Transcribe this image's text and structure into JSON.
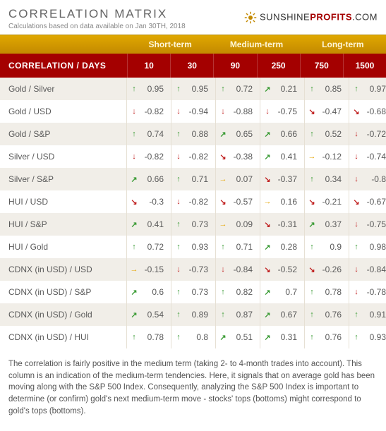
{
  "header": {
    "title": "CORRELATION MATRIX",
    "subtitle": "Calculations based on data available on Jan 30TH, 2018",
    "logo_sunshine": "SUNSHINE",
    "logo_profits": "PROFITS",
    "logo_com": ".COM"
  },
  "terms": {
    "groups": [
      {
        "label": "Short-term",
        "span": 2
      },
      {
        "label": "Medium-term",
        "span": 2
      },
      {
        "label": "Long-term",
        "span": 2
      }
    ]
  },
  "days": {
    "label": "CORRELATION / DAYS",
    "cols": [
      "10",
      "30",
      "90",
      "250",
      "750",
      "1500"
    ]
  },
  "rows": [
    {
      "label": "Gold / Silver",
      "cells": [
        {
          "a": "up",
          "v": "0.95"
        },
        {
          "a": "up",
          "v": "0.95"
        },
        {
          "a": "up",
          "v": "0.72"
        },
        {
          "a": "upr",
          "v": "0.21"
        },
        {
          "a": "up",
          "v": "0.85"
        },
        {
          "a": "up",
          "v": "0.97"
        }
      ]
    },
    {
      "label": "Gold / USD",
      "cells": [
        {
          "a": "dn",
          "v": "-0.82"
        },
        {
          "a": "dn",
          "v": "-0.94"
        },
        {
          "a": "dn",
          "v": "-0.88"
        },
        {
          "a": "dn",
          "v": "-0.75"
        },
        {
          "a": "dnr",
          "v": "-0.47"
        },
        {
          "a": "dnr",
          "v": "-0.68"
        }
      ]
    },
    {
      "label": "Gold / S&P",
      "cells": [
        {
          "a": "up",
          "v": "0.74"
        },
        {
          "a": "up",
          "v": "0.88"
        },
        {
          "a": "upr",
          "v": "0.65"
        },
        {
          "a": "upr",
          "v": "0.66"
        },
        {
          "a": "up",
          "v": "0.52"
        },
        {
          "a": "dn",
          "v": "-0.72"
        }
      ]
    },
    {
      "label": "Silver / USD",
      "cells": [
        {
          "a": "dn",
          "v": "-0.82"
        },
        {
          "a": "dn",
          "v": "-0.82"
        },
        {
          "a": "dnr",
          "v": "-0.38"
        },
        {
          "a": "upr",
          "v": "0.41"
        },
        {
          "a": "rt",
          "v": "-0.12"
        },
        {
          "a": "dn",
          "v": "-0.74"
        }
      ]
    },
    {
      "label": "Silver / S&P",
      "cells": [
        {
          "a": "upr",
          "v": "0.66"
        },
        {
          "a": "up",
          "v": "0.71"
        },
        {
          "a": "rt",
          "v": "0.07"
        },
        {
          "a": "dnr",
          "v": "-0.37"
        },
        {
          "a": "up",
          "v": "0.34"
        },
        {
          "a": "dn",
          "v": "-0.8"
        }
      ]
    },
    {
      "label": "HUI / USD",
      "cells": [
        {
          "a": "dnr",
          "v": "-0.3"
        },
        {
          "a": "dn",
          "v": "-0.82"
        },
        {
          "a": "dnr",
          "v": "-0.57"
        },
        {
          "a": "rt",
          "v": "0.16"
        },
        {
          "a": "dnr",
          "v": "-0.21"
        },
        {
          "a": "dnr",
          "v": "-0.67"
        }
      ]
    },
    {
      "label": "HUI / S&P",
      "cells": [
        {
          "a": "upr",
          "v": "0.41"
        },
        {
          "a": "up",
          "v": "0.73"
        },
        {
          "a": "rt",
          "v": "0.09"
        },
        {
          "a": "dnr",
          "v": "-0.31"
        },
        {
          "a": "upr",
          "v": "0.37"
        },
        {
          "a": "dn",
          "v": "-0.75"
        }
      ]
    },
    {
      "label": "HUI / Gold",
      "cells": [
        {
          "a": "up",
          "v": "0.72"
        },
        {
          "a": "up",
          "v": "0.93"
        },
        {
          "a": "up",
          "v": "0.71"
        },
        {
          "a": "upr",
          "v": "0.28"
        },
        {
          "a": "up",
          "v": "0.9"
        },
        {
          "a": "up",
          "v": "0.98"
        }
      ]
    },
    {
      "label": "CDNX (in USD) / USD",
      "cells": [
        {
          "a": "rt",
          "v": "-0.15"
        },
        {
          "a": "dn",
          "v": "-0.73"
        },
        {
          "a": "dn",
          "v": "-0.84"
        },
        {
          "a": "dnr",
          "v": "-0.52"
        },
        {
          "a": "dnr",
          "v": "-0.26"
        },
        {
          "a": "dn",
          "v": "-0.84"
        }
      ]
    },
    {
      "label": "CDNX (in USD) / S&P",
      "cells": [
        {
          "a": "upr",
          "v": "0.6"
        },
        {
          "a": "up",
          "v": "0.73"
        },
        {
          "a": "up",
          "v": "0.82"
        },
        {
          "a": "upr",
          "v": "0.7"
        },
        {
          "a": "up",
          "v": "0.78"
        },
        {
          "a": "dn",
          "v": "-0.78"
        }
      ]
    },
    {
      "label": "CDNX (in USD) / Gold",
      "cells": [
        {
          "a": "upr",
          "v": "0.54"
        },
        {
          "a": "up",
          "v": "0.89"
        },
        {
          "a": "up",
          "v": "0.87"
        },
        {
          "a": "upr",
          "v": "0.67"
        },
        {
          "a": "up",
          "v": "0.76"
        },
        {
          "a": "up",
          "v": "0.91"
        }
      ]
    },
    {
      "label": "CDNX (in USD) / HUI",
      "cells": [
        {
          "a": "up",
          "v": "0.78"
        },
        {
          "a": "up",
          "v": "0.8"
        },
        {
          "a": "upr",
          "v": "0.51"
        },
        {
          "a": "upr",
          "v": "0.31"
        },
        {
          "a": "up",
          "v": "0.76"
        },
        {
          "a": "up",
          "v": "0.93"
        }
      ]
    }
  ],
  "arrows": {
    "up": {
      "glyph": "↑",
      "color": "#3a9b34"
    },
    "upr": {
      "glyph": "↗",
      "color": "#3a9b34"
    },
    "rt": {
      "glyph": "→",
      "color": "#e6a400"
    },
    "dnr": {
      "glyph": "↘",
      "color": "#c02020"
    },
    "dn": {
      "glyph": "↓",
      "color": "#c02020"
    }
  },
  "colors": {
    "header_bar_start": "#e0a800",
    "header_bar_end": "#c38900",
    "days_row_bg": "#a40000",
    "row_alt_bg": "#f1eee8",
    "row_bg": "#ffffff",
    "border": "#e6e0d4",
    "text": "#5a5a5a"
  },
  "footer": "The correlation is fairly positive in the medium term (taking 2- to 4-month trades into account). This column is an indication of the medium-term tendencies. Here, it signals that on average gold has been moving along with the S&P 500 Index. Consequently, analyzing the S&P 500 Index is important to determine (or confirm) gold's next medium-term move - stocks' tops (bottoms) might correspond to gold's tops (bottoms)."
}
